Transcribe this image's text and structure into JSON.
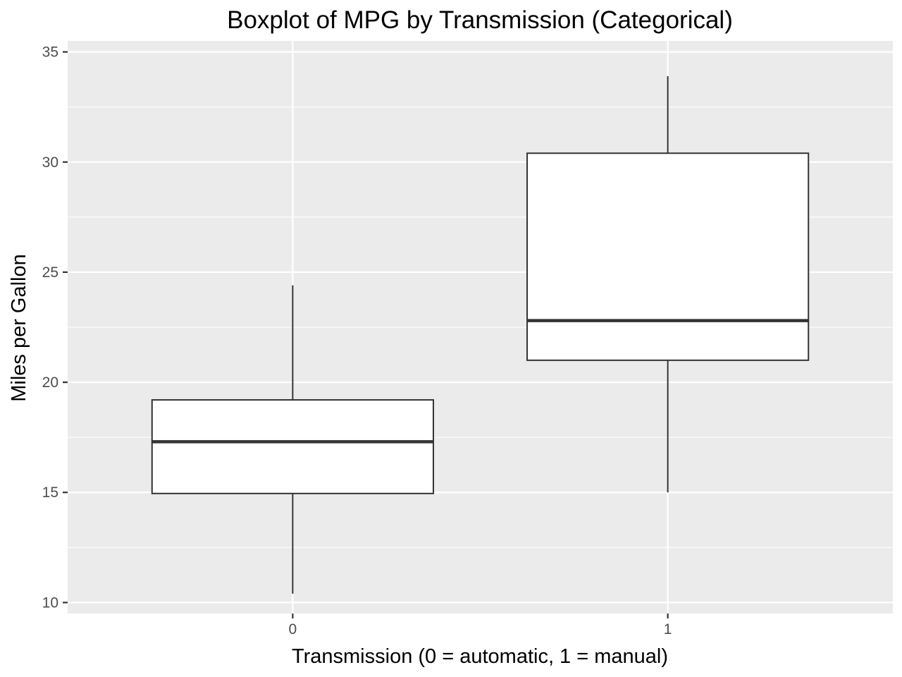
{
  "chart_data": {
    "type": "boxplot",
    "title": "Boxplot of MPG by Transmission (Categorical)",
    "xlabel": "Transmission (0 = automatic, 1 = manual)",
    "ylabel": "Miles per Gallon",
    "categories": [
      "0",
      "1"
    ],
    "ylim": [
      9.5,
      35.5
    ],
    "yticks": [
      10,
      15,
      20,
      25,
      30,
      35
    ],
    "grid": true,
    "boxes": [
      {
        "category": "0",
        "whisker_low": 10.4,
        "q1": 14.95,
        "median": 17.3,
        "q3": 19.2,
        "whisker_high": 24.4
      },
      {
        "category": "1",
        "whisker_low": 15.0,
        "q1": 21.0,
        "median": 22.8,
        "q3": 30.4,
        "whisker_high": 33.9
      }
    ],
    "colors": {
      "panel_background": "#ebebeb",
      "grid": "#ffffff",
      "box_fill": "#ffffff",
      "box_line": "#333333",
      "tick_text": "#4d4d4d",
      "tick_mark": "#333333"
    }
  }
}
